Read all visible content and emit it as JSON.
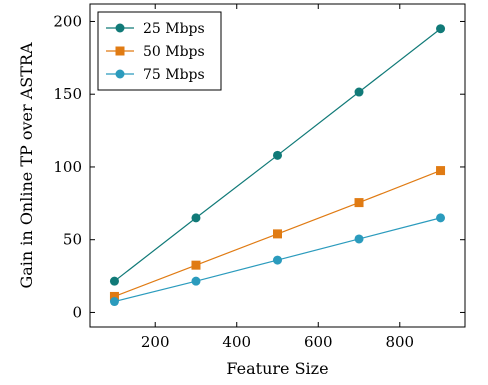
{
  "chart_data": {
    "type": "line",
    "title": "",
    "xlabel": "Feature Size",
    "ylabel": "Gain in Online TP over ASTRA",
    "xlim": [
      40,
      960
    ],
    "ylim": [
      -10,
      212
    ],
    "xticks": [
      200,
      400,
      600,
      800
    ],
    "yticks": [
      0,
      50,
      100,
      150,
      200
    ],
    "grid": false,
    "legend_position": "top-left",
    "x": [
      100,
      300,
      500,
      700,
      900
    ],
    "series": [
      {
        "name": "25 Mbps",
        "color": "#117a78",
        "marker": "circle",
        "values": [
          21.5,
          65,
          108,
          151.5,
          195
        ]
      },
      {
        "name": "50 Mbps",
        "color": "#e07b13",
        "marker": "square",
        "values": [
          11,
          32.5,
          54,
          75.5,
          97.5
        ]
      },
      {
        "name": "75 Mbps",
        "color": "#2b9bbd",
        "marker": "circle",
        "values": [
          7.5,
          21.5,
          36,
          50.5,
          65
        ]
      }
    ]
  }
}
